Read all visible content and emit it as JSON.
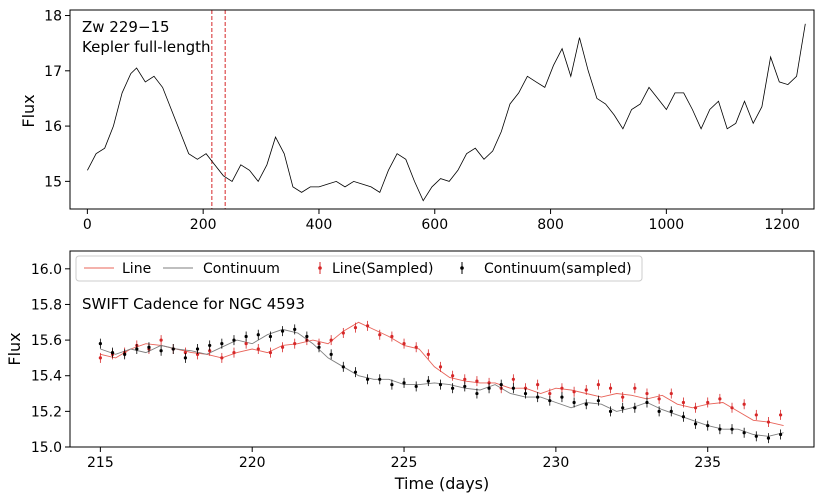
{
  "chart_data": [
    {
      "type": "line",
      "ylabel": "Flux",
      "xlabel": "",
      "xlim": [
        -30,
        1255
      ],
      "ylim": [
        14.5,
        18.1
      ],
      "x_ticks": [
        0,
        200,
        400,
        600,
        800,
        1000,
        1200
      ],
      "y_ticks": [
        15,
        16,
        17,
        18
      ],
      "annotations": [
        "Zw 229−15",
        "Kepler full-length"
      ],
      "markers": [
        {
          "x": 215,
          "color": "#d62728",
          "style": "dashed"
        },
        {
          "x": 238,
          "color": "#d62728",
          "style": "dashed"
        }
      ],
      "series": [
        {
          "color": "#000000",
          "x": [
            0,
            15,
            30,
            45,
            60,
            75,
            85,
            100,
            115,
            130,
            145,
            160,
            175,
            190,
            205,
            220,
            235,
            250,
            265,
            280,
            295,
            310,
            325,
            340,
            355,
            370,
            385,
            400,
            415,
            430,
            445,
            460,
            475,
            490,
            505,
            520,
            535,
            550,
            565,
            580,
            595,
            610,
            625,
            640,
            655,
            670,
            685,
            700,
            715,
            730,
            745,
            760,
            775,
            790,
            805,
            820,
            835,
            850,
            865,
            880,
            895,
            910,
            925,
            940,
            955,
            970,
            985,
            1000,
            1015,
            1030,
            1045,
            1060,
            1075,
            1090,
            1105,
            1120,
            1135,
            1150,
            1165,
            1180,
            1195,
            1210,
            1225,
            1240
          ],
          "y": [
            15.2,
            15.5,
            15.6,
            16.0,
            16.6,
            16.95,
            17.05,
            16.8,
            16.9,
            16.7,
            16.3,
            15.9,
            15.5,
            15.4,
            15.5,
            15.3,
            15.1,
            15.0,
            15.3,
            15.2,
            15.0,
            15.3,
            15.8,
            15.5,
            14.9,
            14.8,
            14.9,
            14.9,
            14.95,
            15.0,
            14.9,
            15.0,
            14.95,
            14.9,
            14.8,
            15.2,
            15.5,
            15.4,
            15.0,
            14.65,
            14.9,
            15.05,
            15.0,
            15.2,
            15.5,
            15.6,
            15.4,
            15.55,
            15.9,
            16.4,
            16.6,
            16.9,
            16.8,
            16.7,
            17.1,
            17.4,
            16.9,
            17.6,
            17.0,
            16.5,
            16.4,
            16.2,
            15.95,
            16.3,
            16.4,
            16.7,
            16.5,
            16.3,
            16.6,
            16.6,
            16.3,
            15.95,
            16.3,
            16.45,
            15.95,
            16.05,
            16.45,
            16.05,
            16.35,
            17.25,
            16.8,
            16.75,
            16.9,
            17.85
          ]
        }
      ]
    },
    {
      "type": "line",
      "title": "",
      "xlabel": "Time (days)",
      "ylabel": "Flux",
      "xlim": [
        214,
        238.5
      ],
      "ylim": [
        15.0,
        16.1
      ],
      "x_ticks": [
        215,
        220,
        225,
        230,
        235
      ],
      "y_ticks": [
        15.0,
        15.2,
        15.4,
        15.6,
        15.8,
        16.0
      ],
      "annotations": [
        "SWIFT Cadence for NGC 4593"
      ],
      "legend_position": "top-left",
      "legend": [
        "Line",
        "Continuum",
        "Line(Sampled)",
        "Continuum(sampled)"
      ],
      "series": [
        {
          "name": "Line",
          "color": "#e8645a",
          "x": [
            215,
            215.5,
            216,
            216.5,
            217,
            217.5,
            218,
            218.5,
            219,
            219.5,
            220,
            220.5,
            221,
            221.5,
            222,
            222.5,
            223,
            223.5,
            224,
            224.5,
            225,
            225.5,
            226,
            226.5,
            227,
            227.5,
            228,
            228.5,
            229,
            229.5,
            230,
            230.5,
            231,
            231.5,
            232,
            232.5,
            233,
            233.5,
            234,
            234.5,
            235,
            235.5,
            236,
            236.5,
            237,
            237.5
          ],
          "y": [
            15.52,
            15.5,
            15.55,
            15.58,
            15.57,
            15.55,
            15.53,
            15.52,
            15.5,
            15.53,
            15.55,
            15.53,
            15.57,
            15.58,
            15.6,
            15.58,
            15.65,
            15.7,
            15.66,
            15.62,
            15.57,
            15.55,
            15.45,
            15.39,
            15.37,
            15.36,
            15.36,
            15.33,
            15.33,
            15.3,
            15.33,
            15.32,
            15.3,
            15.28,
            15.3,
            15.29,
            15.27,
            15.29,
            15.24,
            15.22,
            15.24,
            15.25,
            15.2,
            15.15,
            15.14,
            15.12
          ]
        },
        {
          "name": "Continuum",
          "color": "#7f7f7f",
          "x": [
            215,
            215.5,
            216,
            216.5,
            217,
            217.5,
            218,
            218.5,
            219,
            219.5,
            220,
            220.5,
            221,
            221.5,
            222,
            222.5,
            223,
            223.5,
            224,
            224.5,
            225,
            225.5,
            226,
            226.5,
            227,
            227.5,
            228,
            228.5,
            229,
            229.5,
            230,
            230.5,
            231,
            231.5,
            232,
            232.5,
            233,
            233.5,
            234,
            234.5,
            235,
            235.5,
            236,
            236.5,
            237,
            237.5
          ],
          "y": [
            15.55,
            15.52,
            15.55,
            15.53,
            15.57,
            15.55,
            15.54,
            15.52,
            15.56,
            15.6,
            15.58,
            15.63,
            15.66,
            15.64,
            15.58,
            15.5,
            15.45,
            15.4,
            15.38,
            15.38,
            15.35,
            15.35,
            15.36,
            15.35,
            15.33,
            15.32,
            15.35,
            15.3,
            15.28,
            15.28,
            15.25,
            15.22,
            15.25,
            15.24,
            15.2,
            15.22,
            15.25,
            15.21,
            15.18,
            15.15,
            15.12,
            15.1,
            15.1,
            15.07,
            15.06,
            15.08
          ]
        },
        {
          "name": "Line(Sampled)",
          "color": "#d62728",
          "x": [
            215,
            215.4,
            215.8,
            216.2,
            216.6,
            217.0,
            217.4,
            217.8,
            218.2,
            218.6,
            219.0,
            219.4,
            219.8,
            220.2,
            220.6,
            221.0,
            221.4,
            221.8,
            222.2,
            222.6,
            223.0,
            223.4,
            223.8,
            224.2,
            224.6,
            225.0,
            225.4,
            225.8,
            226.2,
            226.6,
            227.0,
            227.4,
            227.8,
            228.2,
            228.6,
            229.0,
            229.4,
            229.8,
            230.2,
            230.6,
            231.0,
            231.4,
            231.8,
            232.2,
            232.6,
            233.0,
            233.4,
            233.8,
            234.2,
            234.6,
            235.0,
            235.4,
            235.8,
            236.2,
            236.6,
            237.0,
            237.4
          ],
          "y": [
            15.5,
            15.52,
            15.53,
            15.57,
            15.55,
            15.6,
            15.55,
            15.53,
            15.52,
            15.54,
            15.5,
            15.53,
            15.58,
            15.55,
            15.53,
            15.56,
            15.58,
            15.6,
            15.58,
            15.6,
            15.64,
            15.67,
            15.68,
            15.63,
            15.62,
            15.58,
            15.56,
            15.52,
            15.45,
            15.4,
            15.38,
            15.37,
            15.36,
            15.33,
            15.38,
            15.33,
            15.35,
            15.3,
            15.33,
            15.31,
            15.32,
            15.35,
            15.33,
            15.28,
            15.33,
            15.3,
            15.27,
            15.3,
            15.25,
            15.22,
            15.25,
            15.27,
            15.22,
            15.24,
            15.18,
            15.14,
            15.18
          ]
        },
        {
          "name": "Continuum(sampled)",
          "color": "#000000",
          "x": [
            215,
            215.4,
            215.8,
            216.2,
            216.6,
            217.0,
            217.4,
            217.8,
            218.2,
            218.6,
            219.0,
            219.4,
            219.8,
            220.2,
            220.6,
            221.0,
            221.4,
            221.8,
            222.2,
            222.6,
            223.0,
            223.4,
            223.8,
            224.2,
            224.6,
            225.0,
            225.4,
            225.8,
            226.2,
            226.6,
            227.0,
            227.4,
            227.8,
            228.2,
            228.6,
            229.0,
            229.4,
            229.8,
            230.2,
            230.6,
            231.0,
            231.4,
            231.8,
            232.2,
            232.6,
            233.0,
            233.4,
            233.8,
            234.2,
            234.6,
            235.0,
            235.4,
            235.8,
            236.2,
            236.6,
            237.0,
            237.4
          ],
          "y": [
            15.58,
            15.53,
            15.52,
            15.55,
            15.56,
            15.54,
            15.55,
            15.5,
            15.55,
            15.57,
            15.58,
            15.6,
            15.62,
            15.63,
            15.62,
            15.65,
            15.66,
            15.62,
            15.56,
            15.52,
            15.45,
            15.42,
            15.38,
            15.38,
            15.35,
            15.36,
            15.34,
            15.37,
            15.35,
            15.33,
            15.34,
            15.3,
            15.33,
            15.35,
            15.33,
            15.3,
            15.28,
            15.26,
            15.28,
            15.25,
            15.24,
            15.26,
            15.2,
            15.22,
            15.22,
            15.25,
            15.2,
            15.2,
            15.17,
            15.13,
            15.12,
            15.1,
            15.1,
            15.08,
            15.06,
            15.05,
            15.07
          ]
        }
      ]
    }
  ]
}
